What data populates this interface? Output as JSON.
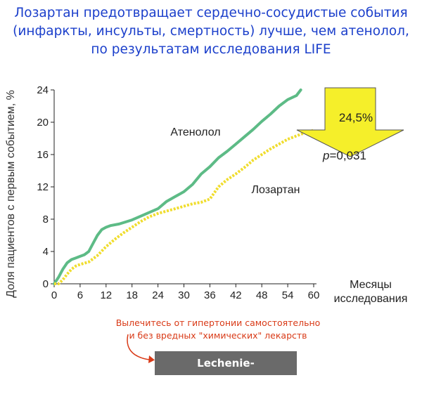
{
  "title": {
    "line1": "Лозартан предотвращает сердечно-сосудистые события",
    "line2": "(инфаркты, инсульты, смертность) лучше, чем атенолол,",
    "line3": "по результатам исследования LIFE"
  },
  "chart_data": {
    "type": "line",
    "ylabel": "Доля пациентов с первым событием, %",
    "xlabel_line1": "Месяцы",
    "xlabel_line2": "исследования",
    "xlim": [
      0,
      60
    ],
    "ylim": [
      0,
      24
    ],
    "x_ticks": [
      0,
      6,
      12,
      18,
      24,
      30,
      36,
      42,
      48,
      54,
      60
    ],
    "y_ticks": [
      0,
      4,
      8,
      12,
      16,
      20,
      24
    ],
    "series": [
      {
        "name": "Атенолол",
        "color": "#5dbb86",
        "style": "solid",
        "points": [
          [
            0,
            0
          ],
          [
            1,
            0.8
          ],
          [
            2,
            1.8
          ],
          [
            3,
            2.6
          ],
          [
            4,
            3.0
          ],
          [
            5,
            3.2
          ],
          [
            6,
            3.4
          ],
          [
            7,
            3.6
          ],
          [
            8,
            4.0
          ],
          [
            9,
            5.0
          ],
          [
            10,
            6.0
          ],
          [
            11,
            6.7
          ],
          [
            12,
            7.0
          ],
          [
            13,
            7.2
          ],
          [
            15,
            7.4
          ],
          [
            18,
            7.9
          ],
          [
            21,
            8.6
          ],
          [
            24,
            9.3
          ],
          [
            26,
            10.2
          ],
          [
            28,
            10.8
          ],
          [
            30,
            11.4
          ],
          [
            32,
            12.3
          ],
          [
            34,
            13.6
          ],
          [
            36,
            14.5
          ],
          [
            38,
            15.6
          ],
          [
            40,
            16.4
          ],
          [
            42,
            17.3
          ],
          [
            44,
            18.2
          ],
          [
            46,
            19.1
          ],
          [
            48,
            20.1
          ],
          [
            50,
            21.0
          ],
          [
            52,
            22.0
          ],
          [
            54,
            22.8
          ],
          [
            56,
            23.3
          ],
          [
            57,
            24.0
          ]
        ]
      },
      {
        "name": "Лозартан",
        "color": "#f0dd2e",
        "style": "dotted",
        "points": [
          [
            0,
            0
          ],
          [
            1,
            0
          ],
          [
            2,
            0.5
          ],
          [
            3,
            1.2
          ],
          [
            4,
            1.8
          ],
          [
            5,
            2.2
          ],
          [
            6,
            2.4
          ],
          [
            8,
            2.7
          ],
          [
            10,
            3.5
          ],
          [
            12,
            4.6
          ],
          [
            14,
            5.5
          ],
          [
            16,
            6.3
          ],
          [
            18,
            7.0
          ],
          [
            20,
            7.7
          ],
          [
            22,
            8.3
          ],
          [
            24,
            8.7
          ],
          [
            26,
            9.0
          ],
          [
            28,
            9.3
          ],
          [
            30,
            9.6
          ],
          [
            32,
            9.9
          ],
          [
            34,
            10.1
          ],
          [
            36,
            10.5
          ],
          [
            38,
            12.0
          ],
          [
            40,
            12.9
          ],
          [
            42,
            13.6
          ],
          [
            44,
            14.4
          ],
          [
            46,
            15.3
          ],
          [
            48,
            16.0
          ],
          [
            50,
            16.7
          ],
          [
            52,
            17.3
          ],
          [
            54,
            17.9
          ],
          [
            56,
            18.3
          ],
          [
            58,
            18.7
          ],
          [
            60,
            19.0
          ]
        ]
      }
    ],
    "annotations": {
      "reduction": "24,5%",
      "p_prefix": "p",
      "p_value": "=0,031",
      "arrow_color": "#f5ef2a"
    }
  },
  "promo": {
    "line1": "Вылечитесь от гипертонии самостоятельно",
    "line2": "и без вредных \"химических\" лекарств",
    "button_label": "Lechenie-Gipertonii.Info",
    "button_color": "#6a6a6a",
    "text_color": "#d93a17"
  }
}
